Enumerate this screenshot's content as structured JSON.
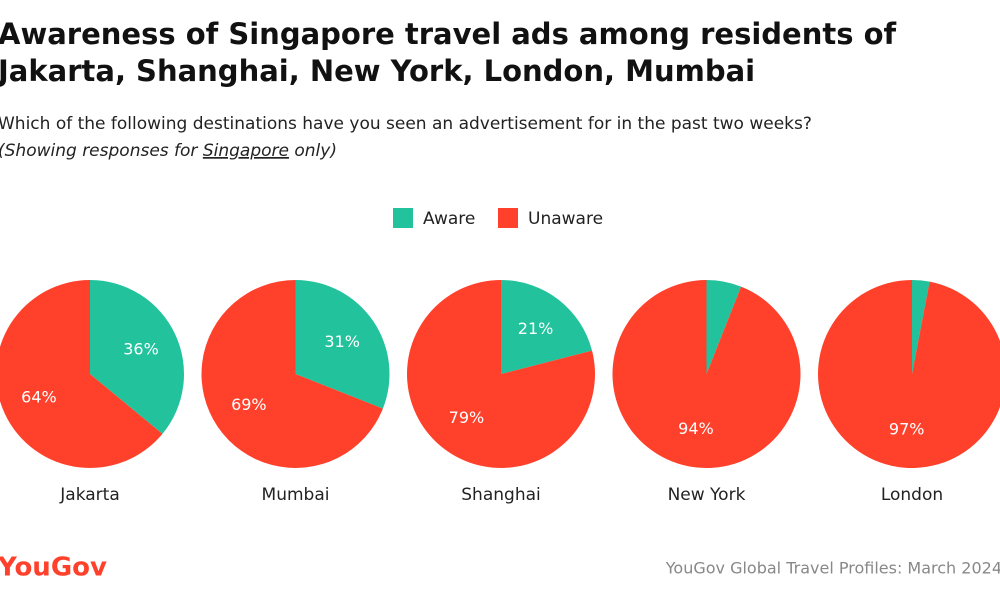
{
  "title": [
    "Awareness of Singapore travel ads among residents of",
    "Jakarta, Shanghai, New York, London, Mumbai"
  ],
  "subtitle": "Which of the following destinations have you seen an advertisement for in the past two weeks?",
  "note": [
    "(Showing responses for ",
    "Singapore",
    " only)"
  ],
  "logo": "YouGov",
  "source": "YouGov Global Travel Profiles: March 2024",
  "chart_data": {
    "type": "pie",
    "categories": [
      "Jakarta",
      "Mumbai",
      "Shanghai",
      "New York",
      "London"
    ],
    "series": [
      {
        "name": "Aware",
        "color": "#22c39c",
        "values": [
          36,
          31,
          21,
          6,
          3
        ],
        "value_labels": [
          "36%",
          "31%",
          "21%",
          null,
          null
        ]
      },
      {
        "name": "Unaware",
        "color": "#ff412c",
        "values": [
          64,
          69,
          79,
          94,
          97
        ],
        "value_labels": [
          "64%",
          "69%",
          "79%",
          "94%",
          "97%"
        ]
      }
    ]
  }
}
